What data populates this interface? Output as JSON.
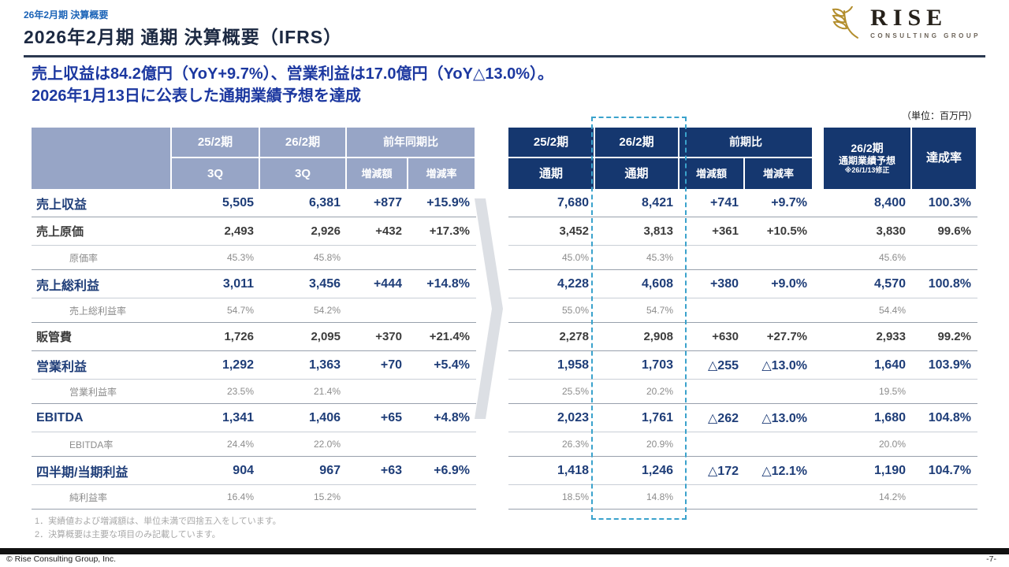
{
  "meta": {
    "eyebrow": "26年2月期 決算概要",
    "title": "2026年2月期 通期 決算概要（IFRS）",
    "headline1": "売上収益は84.2億円（YoY+9.7%）、営業利益は17.0億円（YoY△13.0%）。",
    "headline2": "2026年1月13日に公表した通期業績予想を達成",
    "unit_label": "（単位：百万円）",
    "notes": [
      "1．実績値および増減額は、単位未満で四捨五入をしています。",
      "2．決算概要は主要な項目のみ記載しています。"
    ],
    "copyright": "© Rise Consulting Group, Inc.",
    "page_number": "-7-"
  },
  "logo": {
    "name": "RISE",
    "sub": "CONSULTING GROUP"
  },
  "icons": {
    "logo": "wheat-sheaf-icon",
    "between_tables": "chevron-right-arrow"
  },
  "colors": {
    "header_navy": "#15376f",
    "header_bluegray": "#97a5c6",
    "navy_text": "#1e3d78",
    "headline_blue": "#1c38a0",
    "highlight_dashed": "#3aa2cc"
  },
  "left_table": {
    "header": {
      "col_py_l1": "25/2期",
      "col_py_l2": "3Q",
      "col_cy_l1": "26/2期",
      "col_cy_l2": "3Q",
      "group": "前年同期比",
      "diff": "増減額",
      "rate": "増減率"
    }
  },
  "right_table": {
    "header": {
      "col_py_l1": "25/2期",
      "col_py_l2": "通期",
      "col_cy_l1": "26/2期",
      "col_cy_l2": "通期",
      "group": "前期比",
      "diff": "増減額",
      "rate": "増減率",
      "forecast_l1": "26/2期",
      "forecast_l2": "通期業績予想",
      "forecast_l3": "※26/1/13修正",
      "achieve": "達成率"
    }
  },
  "rows": [
    {
      "label": "売上収益",
      "style": "navy",
      "left": [
        "5,505",
        "6,381",
        "+877",
        "+15.9%"
      ],
      "right": [
        "7,680",
        "8,421",
        "+741",
        "+9.7%",
        "8,400",
        "100.3%"
      ]
    },
    {
      "label": "売上原価",
      "style": "dark",
      "left": [
        "2,493",
        "2,926",
        "+432",
        "+17.3%"
      ],
      "right": [
        "3,452",
        "3,813",
        "+361",
        "+10.5%",
        "3,830",
        "99.6%"
      ]
    },
    {
      "label": "原価率",
      "style": "sub",
      "left": [
        "45.3%",
        "45.8%",
        "",
        ""
      ],
      "right": [
        "45.0%",
        "45.3%",
        "",
        "",
        "45.6%",
        ""
      ]
    },
    {
      "label": "売上総利益",
      "style": "navy",
      "left": [
        "3,011",
        "3,456",
        "+444",
        "+14.8%"
      ],
      "right": [
        "4,228",
        "4,608",
        "+380",
        "+9.0%",
        "4,570",
        "100.8%"
      ]
    },
    {
      "label": "売上総利益率",
      "style": "sub",
      "left": [
        "54.7%",
        "54.2%",
        "",
        ""
      ],
      "right": [
        "55.0%",
        "54.7%",
        "",
        "",
        "54.4%",
        ""
      ]
    },
    {
      "label": "販管費",
      "style": "dark",
      "left": [
        "1,726",
        "2,095",
        "+370",
        "+21.4%"
      ],
      "right": [
        "2,278",
        "2,908",
        "+630",
        "+27.7%",
        "2,933",
        "99.2%"
      ]
    },
    {
      "label": "営業利益",
      "style": "navy",
      "left": [
        "1,292",
        "1,363",
        "+70",
        "+5.4%"
      ],
      "right": [
        "1,958",
        "1,703",
        "△255",
        "△13.0%",
        "1,640",
        "103.9%"
      ]
    },
    {
      "label": "営業利益率",
      "style": "sub",
      "left": [
        "23.5%",
        "21.4%",
        "",
        ""
      ],
      "right": [
        "25.5%",
        "20.2%",
        "",
        "",
        "19.5%",
        ""
      ]
    },
    {
      "label": "EBITDA",
      "style": "navy",
      "left": [
        "1,341",
        "1,406",
        "+65",
        "+4.8%"
      ],
      "right": [
        "2,023",
        "1,761",
        "△262",
        "△13.0%",
        "1,680",
        "104.8%"
      ]
    },
    {
      "label": "EBITDA率",
      "style": "sub",
      "left": [
        "24.4%",
        "22.0%",
        "",
        ""
      ],
      "right": [
        "26.3%",
        "20.9%",
        "",
        "",
        "20.0%",
        ""
      ]
    },
    {
      "label": "四半期/当期利益",
      "style": "navy",
      "left": [
        "904",
        "967",
        "+63",
        "+6.9%"
      ],
      "right": [
        "1,418",
        "1,246",
        "△172",
        "△12.1%",
        "1,190",
        "104.7%"
      ]
    },
    {
      "label": "純利益率",
      "style": "sub",
      "left": [
        "16.4%",
        "15.2%",
        "",
        ""
      ],
      "right": [
        "18.5%",
        "14.8%",
        "",
        "",
        "14.2%",
        ""
      ]
    }
  ]
}
